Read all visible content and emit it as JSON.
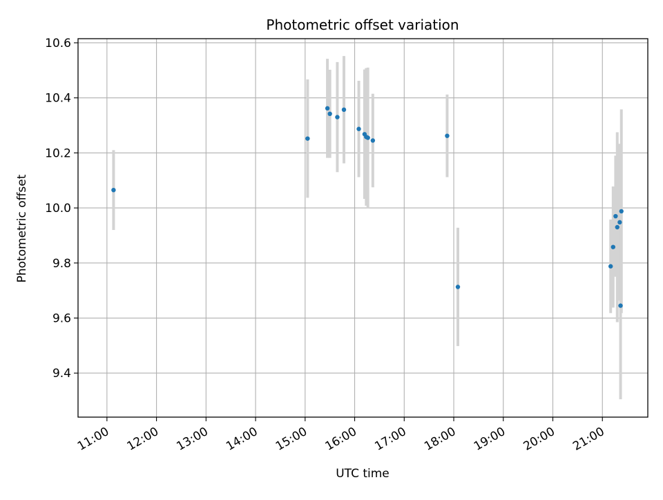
{
  "chart_data": {
    "type": "scatter",
    "title": "Photometric offset variation",
    "xlabel": "UTC time",
    "ylabel": "Photometric offset",
    "x_is_time": true,
    "xlim": [
      "10:25",
      "21:55"
    ],
    "ylim": [
      9.24,
      10.615
    ],
    "x_ticks": [
      "11:00",
      "12:00",
      "13:00",
      "14:00",
      "15:00",
      "16:00",
      "17:00",
      "18:00",
      "19:00",
      "20:00",
      "21:00"
    ],
    "y_ticks": [
      "9.4",
      "9.6",
      "9.8",
      "10.0",
      "10.2",
      "10.4",
      "10.6"
    ],
    "grid": true,
    "marker_color": "#1f77b4",
    "errorbar_color": "#d3d3d3",
    "points": [
      {
        "x": "11:08",
        "y": 10.065,
        "err": 0.145
      },
      {
        "x": "15:03",
        "y": 10.252,
        "err": 0.215
      },
      {
        "x": "15:27",
        "y": 10.362,
        "err": 0.18
      },
      {
        "x": "15:30",
        "y": 10.342,
        "err": 0.16
      },
      {
        "x": "15:39",
        "y": 10.33,
        "err": 0.2
      },
      {
        "x": "15:47",
        "y": 10.357,
        "err": 0.195
      },
      {
        "x": "16:05",
        "y": 10.287,
        "err": 0.175
      },
      {
        "x": "16:12",
        "y": 10.268,
        "err": 0.235
      },
      {
        "x": "16:14",
        "y": 10.258,
        "err": 0.25
      },
      {
        "x": "16:16",
        "y": 10.255,
        "err": 0.255
      },
      {
        "x": "16:22",
        "y": 10.245,
        "err": 0.17
      },
      {
        "x": "17:52",
        "y": 10.262,
        "err": 0.15
      },
      {
        "x": "18:05",
        "y": 9.713,
        "err": 0.215
      },
      {
        "x": "21:10",
        "y": 9.788,
        "err": 0.17
      },
      {
        "x": "21:13",
        "y": 9.858,
        "err": 0.22
      },
      {
        "x": "21:16",
        "y": 9.97,
        "err": 0.22
      },
      {
        "x": "21:18",
        "y": 9.93,
        "err": 0.345
      },
      {
        "x": "21:21",
        "y": 9.948,
        "err": 0.285
      },
      {
        "x": "21:22",
        "y": 9.645,
        "err": 0.34
      },
      {
        "x": "21:23",
        "y": 9.988,
        "err": 0.37
      }
    ]
  }
}
